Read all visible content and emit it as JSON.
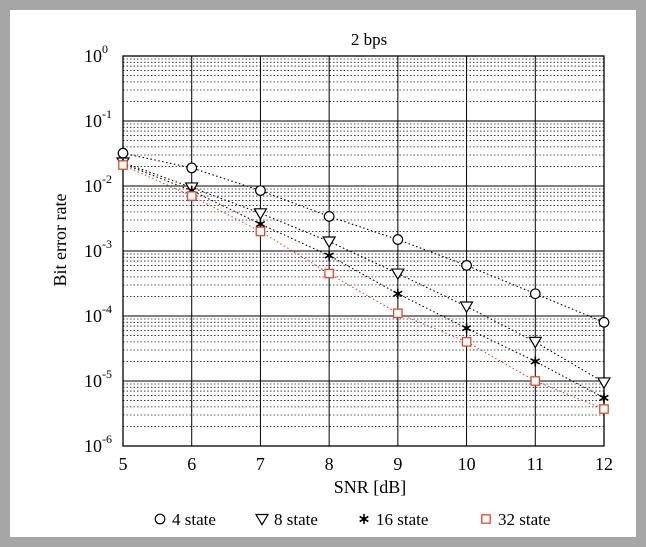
{
  "chart_data": {
    "type": "line",
    "title": "2 bps",
    "xlabel": "SNR [dB]",
    "ylabel": "Bit error rate",
    "xlim": [
      5,
      12
    ],
    "ylim": [
      1e-06,
      1
    ],
    "yscale": "log",
    "grid": true,
    "x": [
      5,
      6,
      7,
      8,
      9,
      10,
      11,
      12
    ],
    "x_ticks": [
      "5",
      "6",
      "7",
      "8",
      "9",
      "10",
      "11",
      "12"
    ],
    "y_ticks": [
      {
        "base": "10",
        "exp": "0"
      },
      {
        "base": "10",
        "exp": "-1"
      },
      {
        "base": "10",
        "exp": "-2"
      },
      {
        "base": "10",
        "exp": "-3"
      },
      {
        "base": "10",
        "exp": "-4"
      },
      {
        "base": "10",
        "exp": "-5"
      },
      {
        "base": "10",
        "exp": "-6"
      }
    ],
    "legend_position": "bottom",
    "series": [
      {
        "name": "4 state",
        "marker": "circle",
        "color": "#000000",
        "values": [
          0.032,
          0.019,
          0.0085,
          0.0034,
          0.0015,
          0.0006,
          0.00022,
          8e-05
        ]
      },
      {
        "name": "8 state",
        "marker": "triangle-down",
        "color": "#000000",
        "values": [
          0.023,
          0.0095,
          0.0038,
          0.0014,
          0.00045,
          0.00014,
          4e-05,
          9.5e-06
        ]
      },
      {
        "name": "16 state",
        "marker": "star",
        "color": "#000000",
        "values": [
          0.022,
          0.0085,
          0.0026,
          0.00085,
          0.00022,
          6.5e-05,
          2e-05,
          5.5e-06
        ]
      },
      {
        "name": "32 state",
        "marker": "square",
        "color": "#e8452a",
        "values": [
          0.021,
          0.007,
          0.002,
          0.00045,
          0.00011,
          4e-05,
          1e-05,
          3.7e-06
        ]
      }
    ]
  }
}
